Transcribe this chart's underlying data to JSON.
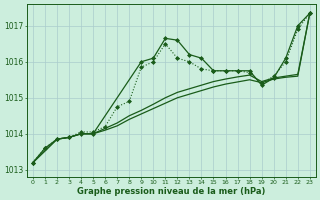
{
  "xlabel": "Graphe pression niveau de la mer (hPa)",
  "bg_color": "#cceedd",
  "grid_color": "#aacccc",
  "line_color": "#1a5c1a",
  "ylim": [
    1012.8,
    1017.6
  ],
  "yticks": [
    1013,
    1014,
    1015,
    1016,
    1017
  ],
  "xticks": [
    0,
    1,
    2,
    3,
    4,
    5,
    6,
    7,
    8,
    9,
    10,
    11,
    12,
    13,
    14,
    15,
    16,
    17,
    18,
    19,
    20,
    21,
    22,
    23
  ],
  "s1_x": [
    0,
    1,
    2,
    3,
    4,
    5,
    9,
    10,
    11,
    12,
    13,
    14,
    15,
    16,
    17,
    18,
    19,
    20,
    21,
    22,
    23
  ],
  "s1_y": [
    1013.2,
    1013.6,
    1013.85,
    1013.9,
    1014.0,
    1014.0,
    1016.0,
    1016.1,
    1016.65,
    1016.6,
    1016.2,
    1016.1,
    1015.75,
    1015.75,
    1015.75,
    1015.75,
    1015.35,
    1015.55,
    1016.1,
    1017.0,
    1017.35
  ],
  "s2_x": [
    0,
    1,
    2,
    3,
    4,
    5,
    6,
    7,
    8,
    9,
    10,
    11,
    12,
    13,
    14,
    15,
    16,
    17,
    18,
    19,
    20,
    21,
    22,
    23
  ],
  "s2_y": [
    1013.2,
    1013.6,
    1013.85,
    1013.9,
    1014.05,
    1014.05,
    1014.2,
    1014.75,
    1014.9,
    1015.85,
    1016.0,
    1016.5,
    1016.1,
    1016.0,
    1015.8,
    1015.75,
    1015.75,
    1015.75,
    1015.7,
    1015.4,
    1015.6,
    1016.0,
    1016.9,
    1017.35
  ],
  "s3_x": [
    0,
    2,
    3,
    4,
    5,
    6,
    7,
    8,
    9,
    10,
    11,
    12,
    13,
    14,
    15,
    16,
    17,
    18,
    19,
    20,
    21,
    22,
    23
  ],
  "s3_y": [
    1013.2,
    1013.85,
    1013.9,
    1014.0,
    1014.0,
    1014.15,
    1014.3,
    1014.5,
    1014.65,
    1014.82,
    1015.0,
    1015.15,
    1015.25,
    1015.35,
    1015.45,
    1015.52,
    1015.58,
    1015.63,
    1015.45,
    1015.55,
    1015.6,
    1015.65,
    1017.35
  ],
  "s4_x": [
    0,
    2,
    3,
    4,
    5,
    6,
    7,
    8,
    9,
    10,
    11,
    12,
    13,
    14,
    15,
    16,
    17,
    18,
    19,
    20,
    21,
    22,
    23
  ],
  "s4_y": [
    1013.2,
    1013.85,
    1013.9,
    1014.0,
    1014.0,
    1014.1,
    1014.22,
    1014.4,
    1014.55,
    1014.7,
    1014.85,
    1015.0,
    1015.1,
    1015.2,
    1015.3,
    1015.38,
    1015.44,
    1015.5,
    1015.42,
    1015.52,
    1015.57,
    1015.6,
    1017.35
  ]
}
